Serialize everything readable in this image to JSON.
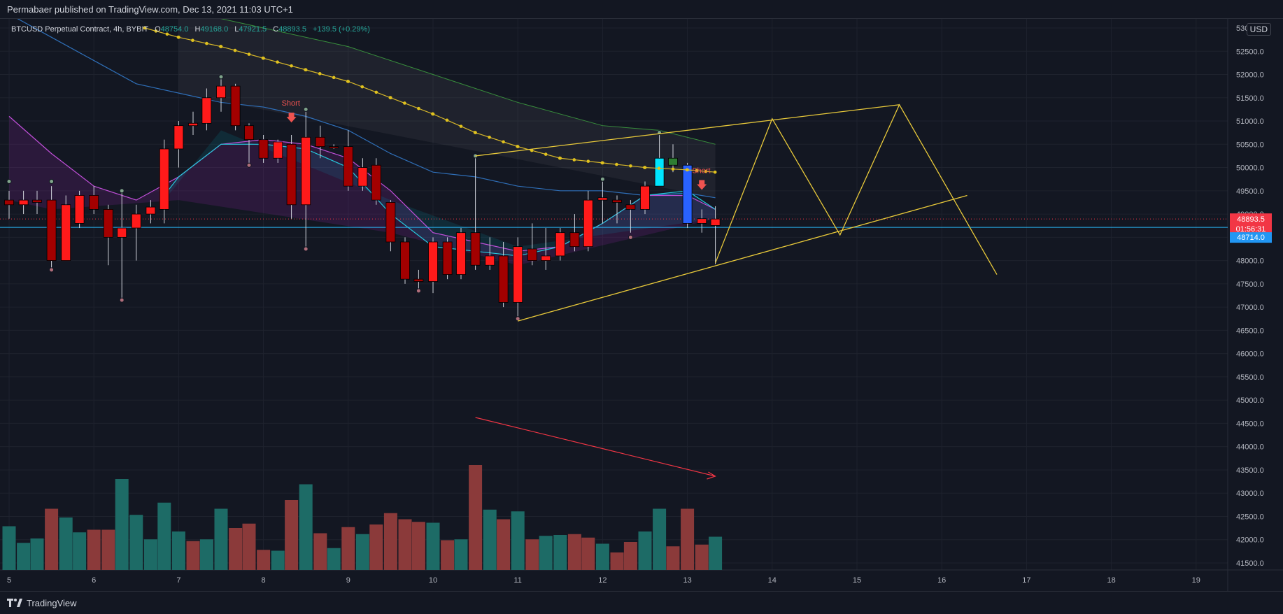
{
  "header": {
    "publisher": "Permabaer published on TradingView.com, Dec 13, 2021 11:03 UTC+1"
  },
  "legend": {
    "symbol": "BTCUSD Perpetual Contract, 4h, BYBIT",
    "o_label": "O",
    "o_value": "48754.0",
    "h_label": "H",
    "h_value": "49168.0",
    "l_label": "L",
    "l_value": "47921.5",
    "c_label": "C",
    "c_value": "48893.5",
    "change": "+139.5 (+0.29%)"
  },
  "currency_button": "USD",
  "price_tags": {
    "last_price": "48893.5",
    "countdown": "01:56:31",
    "line_price": "48714.0"
  },
  "annotations": {
    "short_1": "Short",
    "short_2": "Short"
  },
  "footer": {
    "brand": "TradingView"
  },
  "colors": {
    "background": "#131722",
    "up_candle": "#ff0000",
    "down_candle": "#9c0000",
    "volume_up": "#26a69a",
    "volume_down": "#ef5350",
    "ema_yellow": "#d4b52a",
    "pattern_lines": "#e8c93a",
    "horizontal_line": "#29b6f6"
  },
  "chart_data": {
    "type": "candlestick",
    "timeframe": "4h",
    "y_ticks": [
      "53000.0",
      "52500.0",
      "52000.0",
      "51500.0",
      "51000.0",
      "50500.0",
      "50000.0",
      "49500.0",
      "49000.0",
      "48500.0",
      "48000.0",
      "47500.0",
      "47000.0",
      "46500.0",
      "46000.0",
      "45500.0",
      "45000.0",
      "44500.0",
      "44000.0",
      "43500.0",
      "43000.0",
      "42500.0",
      "42000.0",
      "41500.0"
    ],
    "x_ticks": [
      "5",
      "6",
      "7",
      "8",
      "9",
      "10",
      "11",
      "12",
      "13",
      "14",
      "15",
      "16",
      "17",
      "18",
      "19"
    ],
    "ylim": [
      41300,
      53400
    ],
    "candles": [
      {
        "d": 5.0,
        "o": 49300,
        "h": 49500,
        "l": 48900,
        "c": 49200
      },
      {
        "d": 5.17,
        "o": 49200,
        "h": 49500,
        "l": 49000,
        "c": 49300
      },
      {
        "d": 5.33,
        "o": 49300,
        "h": 49500,
        "l": 49000,
        "c": 49250
      },
      {
        "d": 5.5,
        "o": 49300,
        "h": 49600,
        "l": 47800,
        "c": 48000
      },
      {
        "d": 5.67,
        "o": 48000,
        "h": 49400,
        "l": 48000,
        "c": 49200
      },
      {
        "d": 5.83,
        "o": 48800,
        "h": 49500,
        "l": 48700,
        "c": 49400
      },
      {
        "d": 6.0,
        "o": 49400,
        "h": 49600,
        "l": 49000,
        "c": 49100
      },
      {
        "d": 6.17,
        "o": 49100,
        "h": 49200,
        "l": 47900,
        "c": 48500
      },
      {
        "d": 6.33,
        "o": 48500,
        "h": 49500,
        "l": 47100,
        "c": 48700
      },
      {
        "d": 6.5,
        "o": 48700,
        "h": 49200,
        "l": 48000,
        "c": 49000
      },
      {
        "d": 6.67,
        "o": 49000,
        "h": 49300,
        "l": 48800,
        "c": 49150
      },
      {
        "d": 6.83,
        "o": 49100,
        "h": 50600,
        "l": 48800,
        "c": 50400
      },
      {
        "d": 7.0,
        "o": 50400,
        "h": 51000,
        "l": 50000,
        "c": 50900
      },
      {
        "d": 7.17,
        "o": 50900,
        "h": 51200,
        "l": 50700,
        "c": 50950
      },
      {
        "d": 7.33,
        "o": 50950,
        "h": 51700,
        "l": 50800,
        "c": 51500
      },
      {
        "d": 7.5,
        "o": 51500,
        "h": 51900,
        "l": 51200,
        "c": 51750
      },
      {
        "d": 7.67,
        "o": 51750,
        "h": 51800,
        "l": 50800,
        "c": 50900
      },
      {
        "d": 7.83,
        "o": 50900,
        "h": 50950,
        "l": 50100,
        "c": 50600
      },
      {
        "d": 8.0,
        "o": 50600,
        "h": 50700,
        "l": 50100,
        "c": 50200
      },
      {
        "d": 8.17,
        "o": 50200,
        "h": 50600,
        "l": 50100,
        "c": 50550
      },
      {
        "d": 8.33,
        "o": 50500,
        "h": 50700,
        "l": 48900,
        "c": 49200
      },
      {
        "d": 8.5,
        "o": 49200,
        "h": 51200,
        "l": 48300,
        "c": 50650
      },
      {
        "d": 8.67,
        "o": 50650,
        "h": 50900,
        "l": 50200,
        "c": 50450
      },
      {
        "d": 8.83,
        "o": 50450,
        "h": 50500,
        "l": 50400,
        "c": 50440
      },
      {
        "d": 9.0,
        "o": 50450,
        "h": 50800,
        "l": 49500,
        "c": 49600
      },
      {
        "d": 9.17,
        "o": 49600,
        "h": 50200,
        "l": 49500,
        "c": 50000
      },
      {
        "d": 9.33,
        "o": 50050,
        "h": 50200,
        "l": 49200,
        "c": 49300
      },
      {
        "d": 9.5,
        "o": 49250,
        "h": 49300,
        "l": 48200,
        "c": 48400
      },
      {
        "d": 9.67,
        "o": 48400,
        "h": 48500,
        "l": 47500,
        "c": 47600
      },
      {
        "d": 9.83,
        "o": 47600,
        "h": 47800,
        "l": 47300,
        "c": 47550
      },
      {
        "d": 10.0,
        "o": 47550,
        "h": 48500,
        "l": 47300,
        "c": 48400
      },
      {
        "d": 10.17,
        "o": 48400,
        "h": 48500,
        "l": 47600,
        "c": 47700
      },
      {
        "d": 10.33,
        "o": 47700,
        "h": 48700,
        "l": 47600,
        "c": 48600
      },
      {
        "d": 10.5,
        "o": 48600,
        "h": 50300,
        "l": 47800,
        "c": 47900
      },
      {
        "d": 10.67,
        "o": 47900,
        "h": 48500,
        "l": 47800,
        "c": 48100
      },
      {
        "d": 10.83,
        "o": 48100,
        "h": 48400,
        "l": 47000,
        "c": 47100
      },
      {
        "d": 11.0,
        "o": 47100,
        "h": 48500,
        "l": 46800,
        "c": 48300
      },
      {
        "d": 11.17,
        "o": 48250,
        "h": 48800,
        "l": 47900,
        "c": 48000
      },
      {
        "d": 11.33,
        "o": 48000,
        "h": 48700,
        "l": 47800,
        "c": 48100
      },
      {
        "d": 11.5,
        "o": 48100,
        "h": 48700,
        "l": 48000,
        "c": 48600
      },
      {
        "d": 11.67,
        "o": 48600,
        "h": 49000,
        "l": 48200,
        "c": 48300
      },
      {
        "d": 11.83,
        "o": 48300,
        "h": 49500,
        "l": 48200,
        "c": 49300
      },
      {
        "d": 12.0,
        "o": 49300,
        "h": 49700,
        "l": 48800,
        "c": 49350
      },
      {
        "d": 12.17,
        "o": 49300,
        "h": 49400,
        "l": 48800,
        "c": 49250
      },
      {
        "d": 12.33,
        "o": 49200,
        "h": 49300,
        "l": 48600,
        "c": 49100
      },
      {
        "d": 12.5,
        "o": 49100,
        "h": 49700,
        "l": 49000,
        "c": 49600
      },
      {
        "d": 12.67,
        "o": 49600,
        "h": 50700,
        "l": 49600,
        "c": 50200,
        "mark": "cyan"
      },
      {
        "d": 12.83,
        "o": 50200,
        "h": 50500,
        "l": 49900,
        "c": 50050,
        "mark": "green"
      },
      {
        "d": 13.0,
        "o": 50050,
        "h": 50100,
        "l": 48700,
        "c": 48800,
        "mark": "blue"
      },
      {
        "d": 13.17,
        "o": 48800,
        "h": 49100,
        "l": 48600,
        "c": 48900
      },
      {
        "d": 13.33,
        "o": 48754,
        "h": 49168,
        "l": 47921.5,
        "c": 48893.5
      }
    ],
    "volume_bars": [
      {
        "d": 5.0,
        "v": 2.5,
        "up": true
      },
      {
        "d": 5.17,
        "v": 1.55,
        "up": true
      },
      {
        "d": 5.33,
        "v": 1.8,
        "up": true
      },
      {
        "d": 5.5,
        "v": 3.5,
        "up": false
      },
      {
        "d": 5.67,
        "v": 3.0,
        "up": true
      },
      {
        "d": 5.83,
        "v": 2.15,
        "up": true
      },
      {
        "d": 6.0,
        "v": 2.3,
        "up": false
      },
      {
        "d": 6.17,
        "v": 2.3,
        "up": false
      },
      {
        "d": 6.33,
        "v": 5.2,
        "up": true
      },
      {
        "d": 6.5,
        "v": 3.15,
        "up": true
      },
      {
        "d": 6.67,
        "v": 1.75,
        "up": true
      },
      {
        "d": 6.83,
        "v": 3.85,
        "up": true
      },
      {
        "d": 7.0,
        "v": 2.2,
        "up": true
      },
      {
        "d": 7.17,
        "v": 1.65,
        "up": false
      },
      {
        "d": 7.33,
        "v": 1.75,
        "up": true
      },
      {
        "d": 7.5,
        "v": 3.5,
        "up": true
      },
      {
        "d": 7.67,
        "v": 2.4,
        "up": false
      },
      {
        "d": 7.83,
        "v": 2.65,
        "up": false
      },
      {
        "d": 8.0,
        "v": 1.15,
        "up": false
      },
      {
        "d": 8.17,
        "v": 1.1,
        "up": true
      },
      {
        "d": 8.33,
        "v": 4.0,
        "up": false
      },
      {
        "d": 8.5,
        "v": 4.9,
        "up": true
      },
      {
        "d": 8.67,
        "v": 2.1,
        "up": false
      },
      {
        "d": 8.83,
        "v": 1.25,
        "up": true
      },
      {
        "d": 9.0,
        "v": 2.45,
        "up": false
      },
      {
        "d": 9.17,
        "v": 2.05,
        "up": true
      },
      {
        "d": 9.33,
        "v": 2.6,
        "up": false
      },
      {
        "d": 9.5,
        "v": 3.25,
        "up": false
      },
      {
        "d": 9.67,
        "v": 2.9,
        "up": false
      },
      {
        "d": 9.83,
        "v": 2.75,
        "up": false
      },
      {
        "d": 10.0,
        "v": 2.7,
        "up": true
      },
      {
        "d": 10.17,
        "v": 1.7,
        "up": false
      },
      {
        "d": 10.33,
        "v": 1.75,
        "up": true
      },
      {
        "d": 10.5,
        "v": 6.0,
        "up": false
      },
      {
        "d": 10.67,
        "v": 3.45,
        "up": true
      },
      {
        "d": 10.83,
        "v": 2.9,
        "up": false
      },
      {
        "d": 11.0,
        "v": 3.35,
        "up": true
      },
      {
        "d": 11.17,
        "v": 1.75,
        "up": false
      },
      {
        "d": 11.33,
        "v": 1.95,
        "up": true
      },
      {
        "d": 11.5,
        "v": 2.0,
        "up": true
      },
      {
        "d": 11.67,
        "v": 2.05,
        "up": false
      },
      {
        "d": 11.83,
        "v": 1.85,
        "up": false
      },
      {
        "d": 12.0,
        "v": 1.5,
        "up": true
      },
      {
        "d": 12.17,
        "v": 1.0,
        "up": false
      },
      {
        "d": 12.33,
        "v": 1.6,
        "up": false
      },
      {
        "d": 12.5,
        "v": 2.2,
        "up": true
      },
      {
        "d": 12.67,
        "v": 3.5,
        "up": true
      },
      {
        "d": 12.83,
        "v": 1.35,
        "up": false
      },
      {
        "d": 13.0,
        "v": 3.5,
        "up": false
      },
      {
        "d": 13.17,
        "v": 1.45,
        "up": false
      },
      {
        "d": 13.33,
        "v": 1.9,
        "up": true
      }
    ],
    "ema_dotted": [
      {
        "d": 6.6,
        "p": 53000
      },
      {
        "d": 7.0,
        "p": 52800
      },
      {
        "d": 7.5,
        "p": 52600
      },
      {
        "d": 8.0,
        "p": 52350
      },
      {
        "d": 8.5,
        "p": 52100
      },
      {
        "d": 9.0,
        "p": 51850
      },
      {
        "d": 9.5,
        "p": 51500
      },
      {
        "d": 10.0,
        "p": 51150
      },
      {
        "d": 10.5,
        "p": 50750
      },
      {
        "d": 11.0,
        "p": 50450
      },
      {
        "d": 11.5,
        "p": 50200
      },
      {
        "d": 12.0,
        "p": 50100
      },
      {
        "d": 12.5,
        "p": 50000
      },
      {
        "d": 13.0,
        "p": 49950
      },
      {
        "d": 13.33,
        "p": 49900
      }
    ],
    "band_upper": [
      {
        "d": 7.0,
        "p": 53400
      },
      {
        "d": 8.0,
        "p": 53000
      },
      {
        "d": 9.0,
        "p": 52600
      },
      {
        "d": 10.0,
        "p": 52000
      },
      {
        "d": 11.0,
        "p": 51400
      },
      {
        "d": 12.0,
        "p": 50900
      },
      {
        "d": 12.67,
        "p": 50800
      },
      {
        "d": 13.33,
        "p": 50500
      }
    ],
    "band_lower": [
      {
        "d": 5.0,
        "p": 53300
      },
      {
        "d": 5.5,
        "p": 52800
      },
      {
        "d": 6.0,
        "p": 52300
      },
      {
        "d": 6.5,
        "p": 51800
      },
      {
        "d": 7.0,
        "p": 51600
      },
      {
        "d": 7.5,
        "p": 51400
      },
      {
        "d": 8.0,
        "p": 51300
      },
      {
        "d": 8.5,
        "p": 51100
      },
      {
        "d": 9.0,
        "p": 50800
      },
      {
        "d": 9.5,
        "p": 50300
      },
      {
        "d": 10.0,
        "p": 49900
      },
      {
        "d": 10.5,
        "p": 49800
      },
      {
        "d": 11.0,
        "p": 49600
      },
      {
        "d": 11.5,
        "p": 49500
      },
      {
        "d": 12.0,
        "p": 49500
      },
      {
        "d": 12.5,
        "p": 49400
      },
      {
        "d": 13.0,
        "p": 49450
      },
      {
        "d": 13.33,
        "p": 49350
      }
    ],
    "ribbon_purple": [
      {
        "d": 5.0,
        "p": 51100
      },
      {
        "d": 5.5,
        "p": 50300
      },
      {
        "d": 6.0,
        "p": 49600
      },
      {
        "d": 6.5,
        "p": 49300
      },
      {
        "d": 7.0,
        "p": 49800
      },
      {
        "d": 7.5,
        "p": 50500
      },
      {
        "d": 8.0,
        "p": 50600
      },
      {
        "d": 8.5,
        "p": 50500
      },
      {
        "d": 9.0,
        "p": 50200
      },
      {
        "d": 9.5,
        "p": 49500
      },
      {
        "d": 10.0,
        "p": 48600
      },
      {
        "d": 10.5,
        "p": 48400
      },
      {
        "d": 11.0,
        "p": 48200
      },
      {
        "d": 11.5,
        "p": 48300
      },
      {
        "d": 12.0,
        "p": 48800
      },
      {
        "d": 12.5,
        "p": 49400
      },
      {
        "d": 13.0,
        "p": 49400
      },
      {
        "d": 13.33,
        "p": 49100
      }
    ],
    "ribbon_teal": [
      {
        "d": 6.83,
        "p": 49400
      },
      {
        "d": 7.0,
        "p": 49800
      },
      {
        "d": 7.5,
        "p": 50500
      },
      {
        "d": 8.0,
        "p": 50500
      },
      {
        "d": 8.5,
        "p": 50400
      },
      {
        "d": 9.0,
        "p": 50000
      },
      {
        "d": 9.5,
        "p": 49000
      },
      {
        "d": 10.0,
        "p": 48300
      },
      {
        "d": 10.5,
        "p": 48200
      },
      {
        "d": 11.0,
        "p": 48100
      },
      {
        "d": 11.5,
        "p": 48300
      },
      {
        "d": 12.0,
        "p": 48800
      },
      {
        "d": 12.5,
        "p": 49400
      },
      {
        "d": 13.0,
        "p": 49500
      },
      {
        "d": 13.33,
        "p": 49100
      }
    ],
    "horizontal_line_price": 48714.0,
    "dotted_price_line": 48893.5,
    "pattern_lower_line": [
      {
        "d": 11.0,
        "p": 46700
      },
      {
        "d": 16.3,
        "p": 49400
      }
    ],
    "pattern_upper_line": [
      {
        "d": 10.5,
        "p": 50250
      },
      {
        "d": 15.5,
        "p": 51350
      }
    ],
    "zigzag": [
      {
        "d": 13.33,
        "p": 47950
      },
      {
        "d": 14.0,
        "p": 51050
      },
      {
        "d": 14.8,
        "p": 48550
      },
      {
        "d": 15.5,
        "p": 51350
      },
      {
        "d": 16.65,
        "p": 47700
      }
    ],
    "volume_arrow": {
      "from": {
        "d": 10.5,
        "v": 3.3
      },
      "to": {
        "d": 13.7,
        "v": 2.0
      }
    },
    "pivot_high_dots": [
      {
        "d": 5.0,
        "p": 49700
      },
      {
        "d": 5.5,
        "p": 49700
      },
      {
        "d": 6.33,
        "p": 49500
      },
      {
        "d": 7.5,
        "p": 51950
      },
      {
        "d": 8.5,
        "p": 51250
      },
      {
        "d": 10.5,
        "p": 50250
      },
      {
        "d": 12.0,
        "p": 49750
      },
      {
        "d": 12.67,
        "p": 50750
      }
    ],
    "pivot_low_dots": [
      {
        "d": 5.5,
        "p": 47800
      },
      {
        "d": 6.33,
        "p": 47150
      },
      {
        "d": 7.83,
        "p": 50050
      },
      {
        "d": 8.5,
        "p": 48250
      },
      {
        "d": 9.83,
        "p": 47350
      },
      {
        "d": 11.0,
        "p": 46750
      },
      {
        "d": 12.33,
        "p": 48500
      }
    ],
    "short_signals": [
      {
        "d": 8.33,
        "p": 51300
      },
      {
        "d": 13.17,
        "p": 49850
      }
    ]
  }
}
